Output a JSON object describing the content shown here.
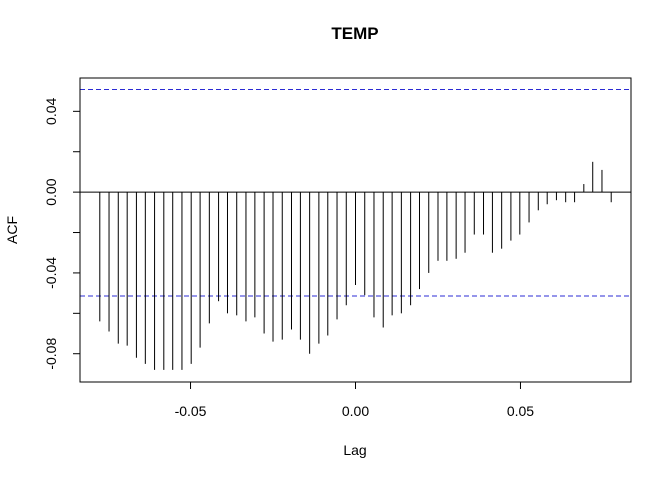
{
  "chart_data": {
    "type": "bar",
    "title": "TEMP",
    "xlabel": "Lag",
    "ylabel": "ACF",
    "xlim": [
      -0.0835,
      0.0835
    ],
    "ylim": [
      -0.094,
      0.0565
    ],
    "x_ticks": [
      {
        "value": -0.05,
        "label": "-0.05"
      },
      {
        "value": 0.0,
        "label": "0.00"
      },
      {
        "value": 0.05,
        "label": "0.05"
      }
    ],
    "y_ticks": [
      {
        "value": -0.08,
        "label": "-0.08"
      },
      {
        "value": -0.04,
        "label": "-0.04"
      },
      {
        "value": 0.0,
        "label": "0.00"
      },
      {
        "value": 0.04,
        "label": "0.04"
      }
    ],
    "confidence_bounds": [
      0.0508,
      -0.0514
    ],
    "zero_line": 0.0,
    "grid": false,
    "x": [
      -0.0775,
      -0.0747,
      -0.0719,
      -0.0692,
      -0.0664,
      -0.0637,
      -0.0609,
      -0.0581,
      -0.0554,
      -0.0526,
      -0.0498,
      -0.0471,
      -0.0443,
      -0.0415,
      -0.0388,
      -0.036,
      -0.0332,
      -0.0305,
      -0.0277,
      -0.025,
      -0.0222,
      -0.0194,
      -0.0167,
      -0.0139,
      -0.0111,
      -0.0084,
      -0.0056,
      -0.0028,
      0.0,
      0.0028,
      0.0056,
      0.0084,
      0.0111,
      0.0139,
      0.0167,
      0.0194,
      0.0222,
      0.025,
      0.0277,
      0.0305,
      0.0332,
      0.036,
      0.0388,
      0.0415,
      0.0443,
      0.0471,
      0.0498,
      0.0526,
      0.0554,
      0.0581,
      0.0609,
      0.0637,
      0.0664,
      0.0692,
      0.0719,
      0.0747,
      0.0775
    ],
    "values": [
      -0.064,
      -0.069,
      -0.075,
      -0.076,
      -0.082,
      -0.085,
      -0.088,
      -0.088,
      -0.088,
      -0.088,
      -0.085,
      -0.077,
      -0.065,
      -0.054,
      -0.06,
      -0.061,
      -0.064,
      -0.062,
      -0.07,
      -0.074,
      -0.073,
      -0.068,
      -0.073,
      -0.08,
      -0.075,
      -0.071,
      -0.063,
      -0.056,
      -0.046,
      -0.051,
      -0.062,
      -0.067,
      -0.061,
      -0.06,
      -0.056,
      -0.048,
      -0.04,
      -0.034,
      -0.034,
      -0.033,
      -0.03,
      -0.021,
      -0.021,
      -0.03,
      -0.028,
      -0.024,
      -0.021,
      -0.015,
      -0.009,
      -0.006,
      -0.004,
      -0.005,
      -0.005,
      0.004,
      0.015,
      0.011,
      -0.005
    ],
    "colors": {
      "bars": "#000000",
      "confidence_lines": "#2b2bd4",
      "axes": "#000000"
    }
  }
}
